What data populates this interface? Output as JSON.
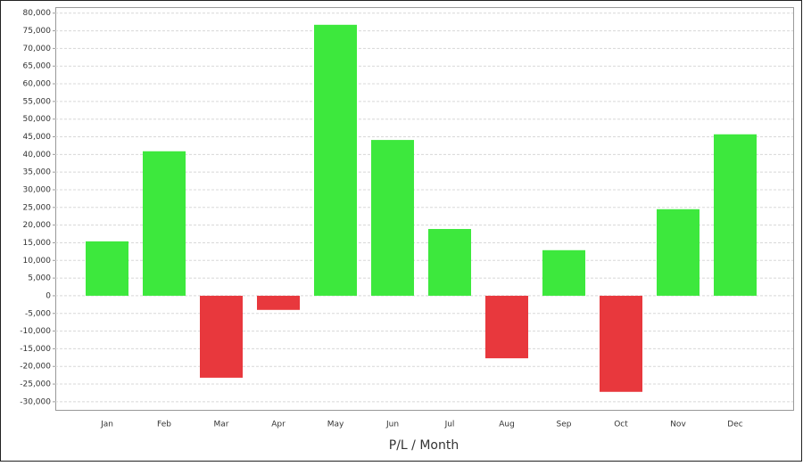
{
  "chart_data": {
    "type": "bar",
    "xlabel": "P/L / Month",
    "categories": [
      "Jan",
      "Feb",
      "Mar",
      "Apr",
      "May",
      "Jun",
      "Jul",
      "Aug",
      "Sep",
      "Oct",
      "Nov",
      "Dec"
    ],
    "values": [
      15400,
      40900,
      -23200,
      -4000,
      76700,
      44100,
      18900,
      -17700,
      12900,
      -27200,
      24500,
      45700
    ],
    "positive_color": "#3de83d",
    "negative_color": "#e8383d",
    "ylim": [
      -32300,
      81700
    ],
    "yticks": [
      {
        "value": -30000,
        "label": "-30,000"
      },
      {
        "value": -25000,
        "label": "-25,000"
      },
      {
        "value": -20000,
        "label": "-20,000"
      },
      {
        "value": -15000,
        "label": "-15,000"
      },
      {
        "value": -10000,
        "label": "-10,000"
      },
      {
        "value": -5000,
        "label": "-5,000"
      },
      0,
      {
        "value": 5000,
        "label": "5,000"
      },
      {
        "value": 10000,
        "label": "10,000"
      },
      {
        "value": 15000,
        "label": "15,000"
      },
      {
        "value": 20000,
        "label": "20,000"
      },
      {
        "value": 25000,
        "label": "25,000"
      },
      {
        "value": 30000,
        "label": "30,000"
      },
      {
        "value": 35000,
        "label": "35,000"
      },
      {
        "value": 40000,
        "label": "40,000"
      },
      {
        "value": 45000,
        "label": "45,000"
      },
      {
        "value": 50000,
        "label": "50,000"
      },
      {
        "value": 55000,
        "label": "55,000"
      },
      {
        "value": 60000,
        "label": "60,000"
      },
      {
        "value": 65000,
        "label": "65,000"
      },
      {
        "value": 70000,
        "label": "70,000"
      },
      {
        "value": 75000,
        "label": "75,000"
      },
      {
        "value": 80000,
        "label": "80,000"
      }
    ],
    "grid": true
  }
}
